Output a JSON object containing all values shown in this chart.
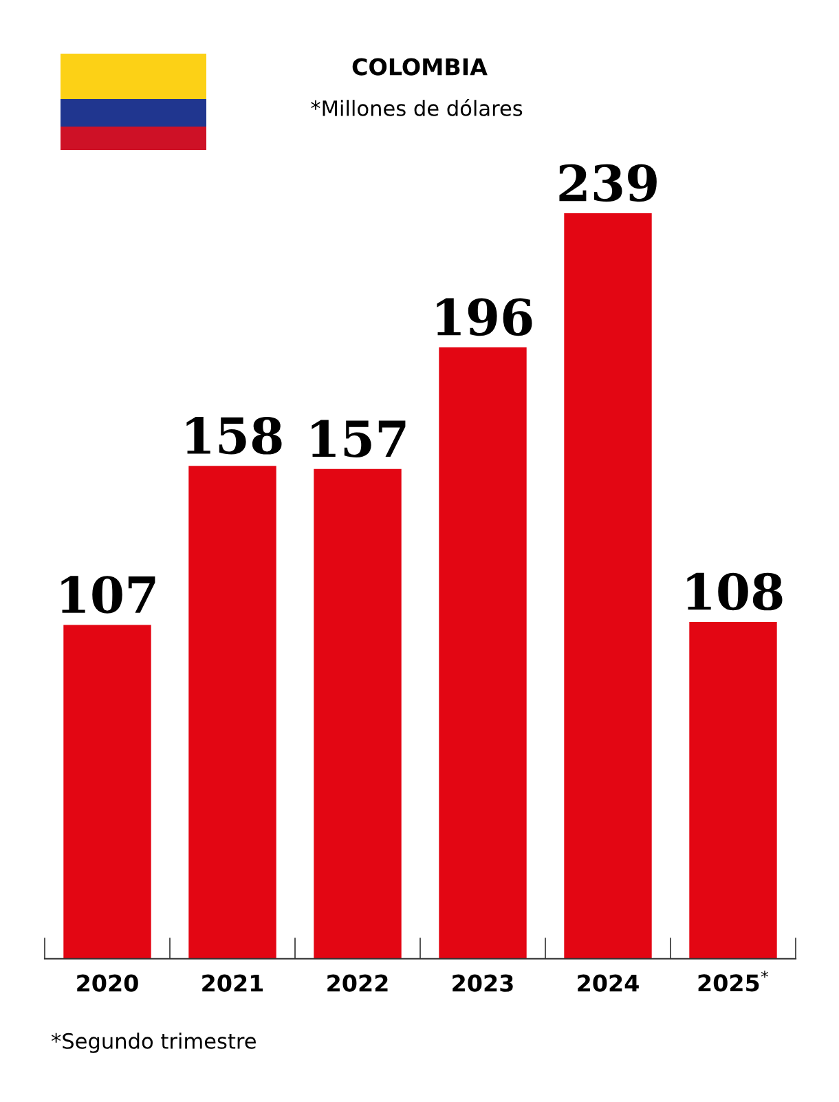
{
  "chart_data": {
    "type": "bar",
    "title": "COLOMBIA",
    "subtitle": "*Millones de dólares",
    "categories": [
      "2020",
      "2021",
      "2022",
      "2023",
      "2024",
      "2025$^{*}$"
    ],
    "values": [
      107,
      158,
      157,
      196,
      239,
      108
    ],
    "color": "#e30613",
    "data_labels": true,
    "tick_labels": "x",
    "grid": false,
    "legend": false,
    "annotations": [
      "*Segundo trimestre"
    ]
  }
}
